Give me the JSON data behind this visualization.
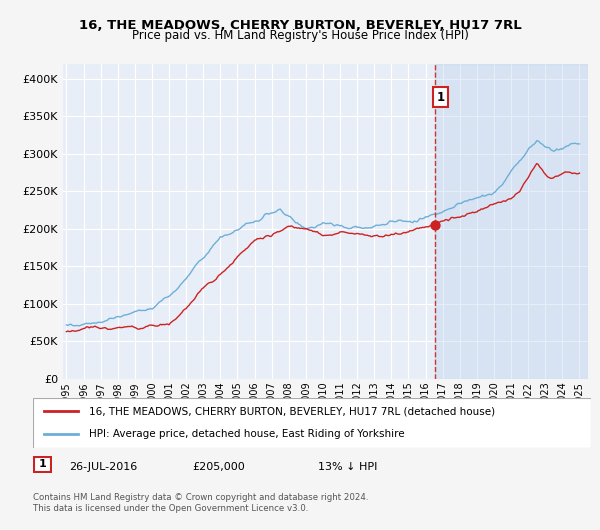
{
  "title": "16, THE MEADOWS, CHERRY BURTON, BEVERLEY, HU17 7RL",
  "subtitle": "Price paid vs. HM Land Registry's House Price Index (HPI)",
  "legend_line1": "16, THE MEADOWS, CHERRY BURTON, BEVERLEY, HU17 7RL (detached house)",
  "legend_line2": "HPI: Average price, detached house, East Riding of Yorkshire",
  "annotation_label": "1",
  "annotation_date": "26-JUL-2016",
  "annotation_price": "£205,000",
  "annotation_hpi": "13% ↓ HPI",
  "footer1": "Contains HM Land Registry data © Crown copyright and database right 2024.",
  "footer2": "This data is licensed under the Open Government Licence v3.0.",
  "sale_marker_year": 2016.57,
  "sale_marker_value": 205000,
  "vline_year": 2016.57,
  "hpi_color": "#6dafd7",
  "price_color": "#cc2222",
  "marker_color": "#cc2222",
  "background_color": "#e8eef7",
  "shade_color": "#d0dff0",
  "grid_color": "#ffffff",
  "fig_bg": "#f5f5f5",
  "ylim": [
    0,
    420000
  ],
  "xlim_start": 1994.8,
  "xlim_end": 2025.5,
  "yticks": [
    0,
    50000,
    100000,
    150000,
    200000,
    250000,
    300000,
    350000,
    400000
  ],
  "ytick_labels": [
    "£0",
    "£50K",
    "£100K",
    "£150K",
    "£200K",
    "£250K",
    "£300K",
    "£350K",
    "£400K"
  ]
}
